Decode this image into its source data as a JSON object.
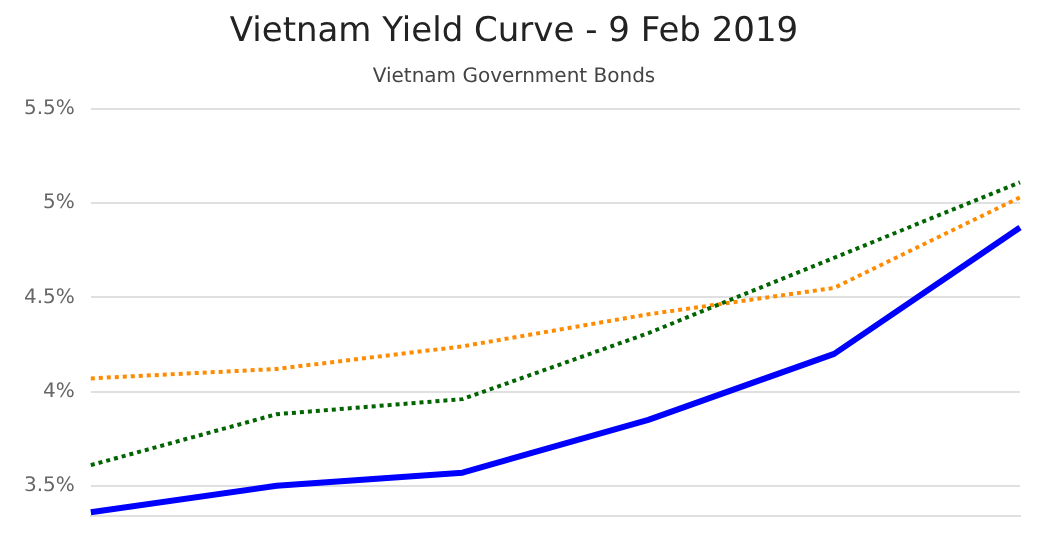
{
  "chart_data": {
    "type": "line",
    "title": "Vietnam Yield Curve - 9 Feb 2019",
    "subtitle": "Vietnam Government Bonds",
    "categories": [
      null,
      null,
      null,
      null,
      null,
      null
    ],
    "series": [
      {
        "color": "#0000ff",
        "line_style": "solid",
        "values": [
          3.36,
          3.5,
          3.57,
          3.85,
          4.2,
          4.87
        ]
      },
      {
        "color": "#006400",
        "line_style": "dotted",
        "values": [
          3.61,
          3.88,
          3.96,
          4.31,
          4.71,
          5.11
        ]
      },
      {
        "color": "#ff8c00",
        "line_style": "dotted",
        "values": [
          4.07,
          4.12,
          4.24,
          4.41,
          4.55,
          5.03
        ]
      }
    ],
    "ylim": [
      3.34,
      5.5
    ],
    "yticks": [
      {
        "value": 3.5,
        "label": "3.5%"
      },
      {
        "value": 4,
        "label": "4%"
      },
      {
        "value": 4.5,
        "label": "4.5%"
      },
      {
        "value": 5,
        "label": "5%"
      },
      {
        "value": 5.5,
        "label": "5.5%"
      }
    ],
    "grid": "y",
    "legend": false,
    "marker": "none",
    "tick_labels": "y"
  }
}
